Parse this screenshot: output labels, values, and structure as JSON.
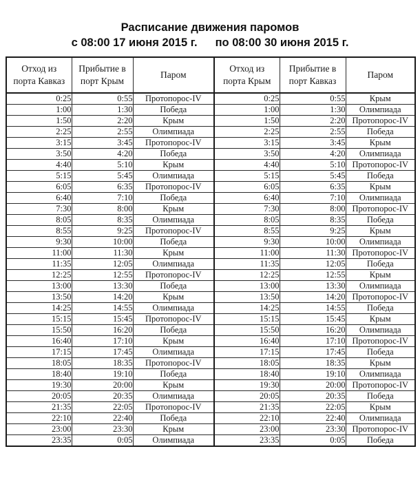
{
  "title": "Расписание движения паромов",
  "subtitle": {
    "from": "с 08:00 17 июня 2015 г.",
    "to": "по 08:00 30 июня 2015 г."
  },
  "table": {
    "headers": [
      "Отход из порта Кавказ",
      "Прибытие в порт Крым",
      "Паром",
      "Отход из порта Крым",
      "Прибытие в порт Кавказ",
      "Паром"
    ],
    "rows": [
      [
        "0:25",
        "0:55",
        "Протопорос-IV",
        "0:25",
        "0:55",
        "Крым"
      ],
      [
        "1:00",
        "1:30",
        "Победа",
        "1:00",
        "1:30",
        "Олимпиада"
      ],
      [
        "1:50",
        "2:20",
        "Крым",
        "1:50",
        "2:20",
        "Протопорос-IV"
      ],
      [
        "2:25",
        "2:55",
        "Олимпиада",
        "2:25",
        "2:55",
        "Победа"
      ],
      [
        "3:15",
        "3:45",
        "Протопорос-IV",
        "3:15",
        "3:45",
        "Крым"
      ],
      [
        "3:50",
        "4:20",
        "Победа",
        "3:50",
        "4:20",
        "Олимпиада"
      ],
      [
        "4:40",
        "5:10",
        "Крым",
        "4:40",
        "5:10",
        "Протопорос-IV"
      ],
      [
        "5:15",
        "5:45",
        "Олимпиада",
        "5:15",
        "5:45",
        "Победа"
      ],
      [
        "6:05",
        "6:35",
        "Протопорос-IV",
        "6:05",
        "6:35",
        "Крым"
      ],
      [
        "6:40",
        "7:10",
        "Победа",
        "6:40",
        "7:10",
        "Олимпиада"
      ],
      [
        "7:30",
        "8:00",
        "Крым",
        "7:30",
        "8:00",
        "Протопорос-IV"
      ],
      [
        "8:05",
        "8:35",
        "Олимпиада",
        "8:05",
        "8:35",
        "Победа"
      ],
      [
        "8:55",
        "9:25",
        "Протопорос-IV",
        "8:55",
        "9:25",
        "Крым"
      ],
      [
        "9:30",
        "10:00",
        "Победа",
        "9:30",
        "10:00",
        "Олимпиада"
      ],
      [
        "11:00",
        "11:30",
        "Крым",
        "11:00",
        "11:30",
        "Протопорос-IV"
      ],
      [
        "11:35",
        "12:05",
        "Олимпиада",
        "11:35",
        "12:05",
        "Победа"
      ],
      [
        "12:25",
        "12:55",
        "Протопорос-IV",
        "12:25",
        "12:55",
        "Крым"
      ],
      [
        "13:00",
        "13:30",
        "Победа",
        "13:00",
        "13:30",
        "Олимпиада"
      ],
      [
        "13:50",
        "14:20",
        "Крым",
        "13:50",
        "14:20",
        "Протопорос-IV"
      ],
      [
        "14:25",
        "14:55",
        "Олимпиада",
        "14:25",
        "14:55",
        "Победа"
      ],
      [
        "15:15",
        "15:45",
        "Протопорос-IV",
        "15:15",
        "15:45",
        "Крым"
      ],
      [
        "15:50",
        "16:20",
        "Победа",
        "15:50",
        "16:20",
        "Олимпиада"
      ],
      [
        "16:40",
        "17:10",
        "Крым",
        "16:40",
        "17:10",
        "Протопорос-IV"
      ],
      [
        "17:15",
        "17:45",
        "Олимпиада",
        "17:15",
        "17:45",
        "Победа"
      ],
      [
        "18:05",
        "18:35",
        "Протопорос-IV",
        "18:05",
        "18:35",
        "Крым"
      ],
      [
        "18:40",
        "19:10",
        "Победа",
        "18:40",
        "19:10",
        "Олимпиада"
      ],
      [
        "19:30",
        "20:00",
        "Крым",
        "19:30",
        "20:00",
        "Протопорос-IV"
      ],
      [
        "20:05",
        "20:35",
        "Олимпиада",
        "20:05",
        "20:35",
        "Победа"
      ],
      [
        "21:35",
        "22:05",
        "Протопорос-IV",
        "21:35",
        "22:05",
        "Крым"
      ],
      [
        "22:10",
        "22:40",
        "Победа",
        "22:10",
        "22:40",
        "Олимпиада"
      ],
      [
        "23:00",
        "23:30",
        "Крым",
        "23:00",
        "23:30",
        "Протопорос-IV"
      ],
      [
        "23:35",
        "0:05",
        "Олимпиада",
        "23:35",
        "0:05",
        "Победа"
      ]
    ]
  },
  "colors": {
    "text": "#1a1a1a",
    "border": "#1a1a1a",
    "background": "#ffffff"
  }
}
